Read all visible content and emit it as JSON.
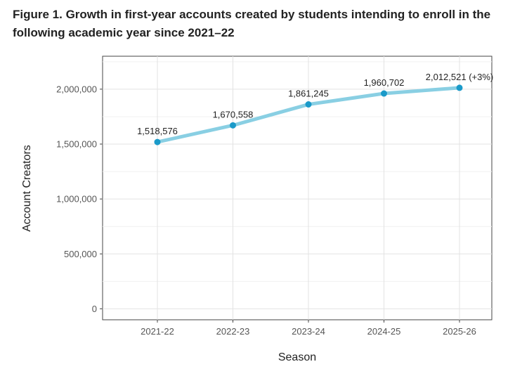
{
  "figure_title": "Figure 1. Growth in first-year accounts created by students intending to enroll in the following academic year since 2021–22",
  "chart_data": {
    "type": "line",
    "title": "Figure 1. Growth in first-year accounts created by students intending to enroll in the following academic year since 2021–22",
    "xlabel": "Season",
    "ylabel": "Account Creators",
    "categories": [
      "2021-22",
      "2022-23",
      "2023-24",
      "2024-25",
      "2025-26"
    ],
    "values": [
      1518576,
      1670558,
      1861245,
      1960702,
      2012521
    ],
    "data_labels": [
      "1,518,576",
      "1,670,558",
      "1,861,245",
      "1,960,702",
      "2,012,521 (+3%)"
    ],
    "ylim": [
      -100000,
      2300000
    ],
    "yticks": [
      0,
      500000,
      1000000,
      1500000,
      2000000
    ],
    "ytick_labels": [
      "0",
      "500,000",
      "1,000,000",
      "1,500,000",
      "2,000,000"
    ],
    "grid": true,
    "line_color": "#89CFE3",
    "marker_color": "#1A9AC9"
  }
}
